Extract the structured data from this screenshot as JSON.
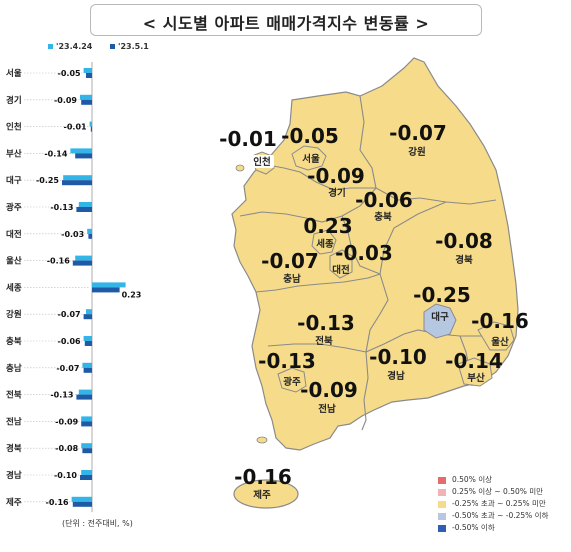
{
  "title": "< 시도별 아파트 매매가격지수 변동률 >",
  "legend_top": [
    {
      "label": "'23.4.24",
      "color": "#34b5e8"
    },
    {
      "label": "'23.5.1",
      "color": "#1f5aa6"
    }
  ],
  "unit_note": "(단위 : 전주대비, %)",
  "chart_data": {
    "type": "bar",
    "orientation": "horizontal",
    "categories": [
      "서울",
      "경기",
      "인천",
      "부산",
      "대구",
      "광주",
      "대전",
      "울산",
      "세종",
      "강원",
      "충북",
      "충남",
      "전북",
      "전남",
      "경북",
      "경남",
      "제주"
    ],
    "series": [
      {
        "name": "'23.4.24",
        "values": [
          -0.07,
          -0.1,
          -0.02,
          -0.18,
          -0.24,
          -0.11,
          -0.04,
          -0.14,
          0.28,
          -0.05,
          -0.07,
          -0.08,
          -0.11,
          -0.09,
          -0.09,
          -0.09,
          -0.17
        ]
      },
      {
        "name": "'23.5.1",
        "values": [
          -0.05,
          -0.09,
          -0.01,
          -0.14,
          -0.25,
          -0.13,
          -0.03,
          -0.16,
          0.23,
          -0.07,
          -0.06,
          -0.07,
          -0.13,
          -0.09,
          -0.08,
          -0.1,
          -0.16
        ]
      }
    ],
    "value_labels": [
      "-0.05",
      "-0.09",
      "-0.01",
      "-0.14",
      "-0.25",
      "-0.13",
      "-0.03",
      "-0.16",
      "0.23",
      "-0.07",
      "-0.06",
      "-0.07",
      "-0.13",
      "-0.09",
      "-0.08",
      "-0.10",
      "-0.16"
    ]
  },
  "map": {
    "regions": [
      {
        "name": "인천",
        "value": "-0.01"
      },
      {
        "name": "서울",
        "value": "-0.05"
      },
      {
        "name": "경기",
        "value": "-0.09"
      },
      {
        "name": "강원",
        "value": "-0.07"
      },
      {
        "name": "충북",
        "value": "-0.06"
      },
      {
        "name": "세종",
        "value": "0.23"
      },
      {
        "name": "대전",
        "value": "-0.03"
      },
      {
        "name": "충남",
        "value": "-0.07"
      },
      {
        "name": "경북",
        "value": "-0.08"
      },
      {
        "name": "대구",
        "value": "-0.25"
      },
      {
        "name": "울산",
        "value": "-0.16"
      },
      {
        "name": "전북",
        "value": "-0.13"
      },
      {
        "name": "광주",
        "value": "-0.13"
      },
      {
        "name": "경남",
        "value": "-0.10"
      },
      {
        "name": "부산",
        "value": "-0.14"
      },
      {
        "name": "전남",
        "value": "-0.09"
      },
      {
        "name": "제주",
        "value": "-0.16"
      }
    ],
    "fill_color": "#f6dc8a",
    "highlight_color": "#b6c7e2",
    "border_color": "#8a8a8a"
  },
  "legend_map": [
    {
      "label": "0.50% 이상",
      "color": "#e36c6c"
    },
    {
      "label": "0.25% 이상 ~ 0.50% 미만",
      "color": "#f1b3b3"
    },
    {
      "label": "-0.25% 초과 ~ 0.25% 미만",
      "color": "#f6dc8a"
    },
    {
      "label": "-0.50% 초과 ~ -0.25% 이하",
      "color": "#b6c7e2"
    },
    {
      "label": "-0.50% 이하",
      "color": "#2f5fb5"
    }
  ]
}
